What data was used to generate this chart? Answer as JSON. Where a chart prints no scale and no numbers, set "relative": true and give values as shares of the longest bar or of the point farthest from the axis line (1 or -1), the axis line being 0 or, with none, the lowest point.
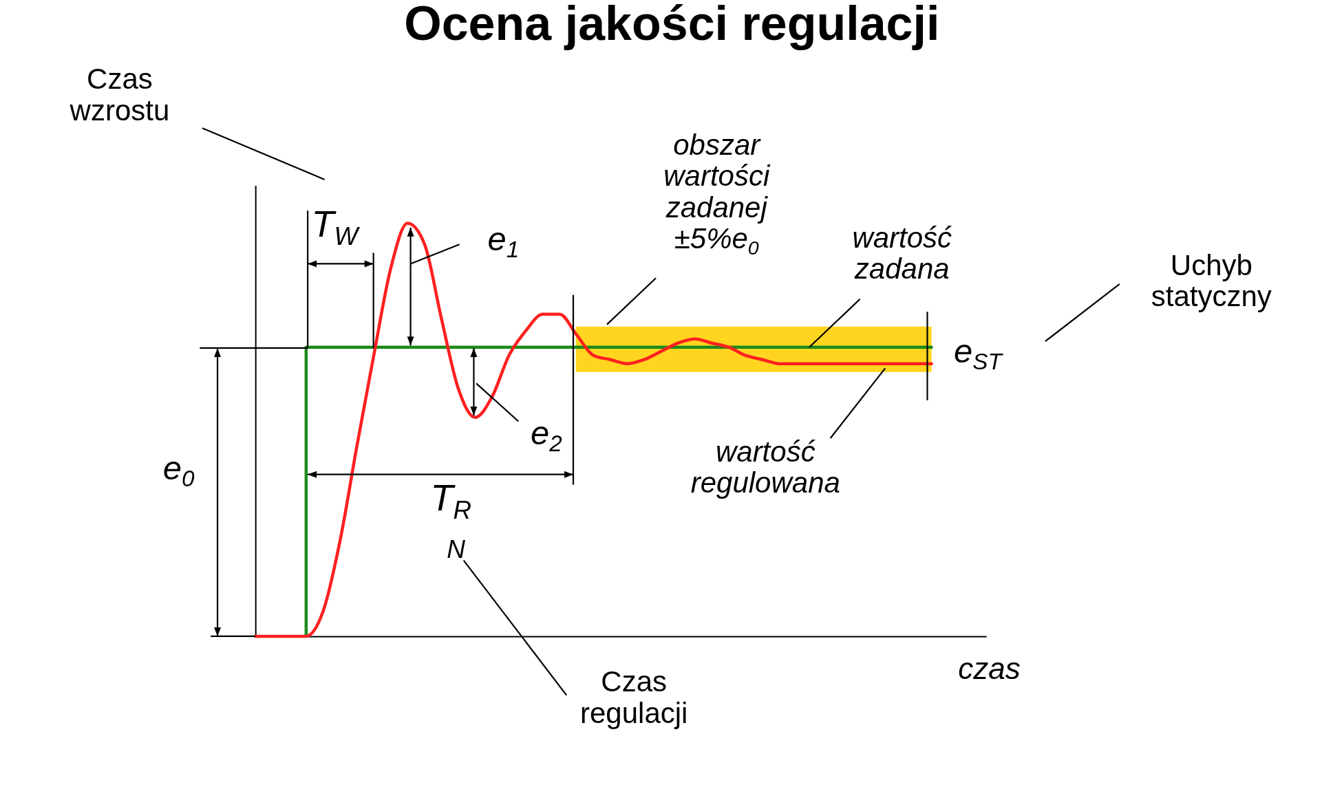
{
  "chart_data": {
    "type": "line",
    "title": "Ocena jakości regulacji",
    "xlabel": "czas",
    "relative": true,
    "grid": false,
    "categories": [
      null,
      null,
      null,
      null,
      null,
      null,
      null,
      null,
      null,
      null,
      null,
      null,
      null,
      null,
      null,
      null,
      null,
      null,
      null,
      null,
      null,
      null,
      null,
      null,
      null,
      null,
      null,
      null,
      null,
      null,
      null,
      null,
      null,
      null,
      null,
      null,
      null,
      null,
      null,
      null,
      null
    ],
    "series": [
      {
        "type": "step",
        "color": "#1a8a1a",
        "values": [
          null,
          null,
          null,
          0,
          0.7,
          0.7,
          0.7,
          0.7,
          0.7,
          0.7,
          0.7,
          0.7,
          0.7,
          0.7,
          0.7,
          0.7,
          0.7,
          0.7,
          0.7,
          0.7,
          0.7,
          0.7,
          0.7,
          0.7,
          0.7,
          0.7,
          0.7,
          0.7,
          0.7,
          0.7,
          0.7,
          0.7,
          0.7,
          0.7,
          0.7,
          0.7,
          0.7,
          0.7,
          0.7,
          0.7,
          0.7
        ]
      },
      {
        "type": "line",
        "color": "#ff2020",
        "values": [
          0,
          0,
          0,
          0,
          0.06,
          0.23,
          0.46,
          0.68,
          0.89,
          1,
          0.95,
          0.77,
          0.6,
          0.53,
          0.58,
          0.68,
          0.74,
          0.78,
          0.78,
          0.73,
          0.68,
          0.67,
          0.66,
          0.67,
          0.69,
          0.71,
          0.72,
          0.71,
          0.7,
          0.68,
          0.67,
          0.66,
          0.66,
          0.66,
          0.66,
          0.66,
          0.66,
          0.66,
          0.66,
          0.66,
          0.66
        ]
      }
    ],
    "bands": [
      {
        "axis": "y",
        "from": 0.64,
        "to": 0.75,
        "color": "#ffd520",
        "label": "obszar wartości zadanej ±5%e$_{0}$"
      }
    ],
    "annotations": [
      "Czas wzrostu",
      "T$_{W}$",
      "e$_{1}$",
      "wartość zadana",
      "Uchyb statyczny",
      "e$_{ST}$",
      "e$_{2}$",
      "wartość regulowana",
      "T$_{R}$",
      "N",
      "e$_{0}$",
      "Czas regulacji"
    ]
  }
}
